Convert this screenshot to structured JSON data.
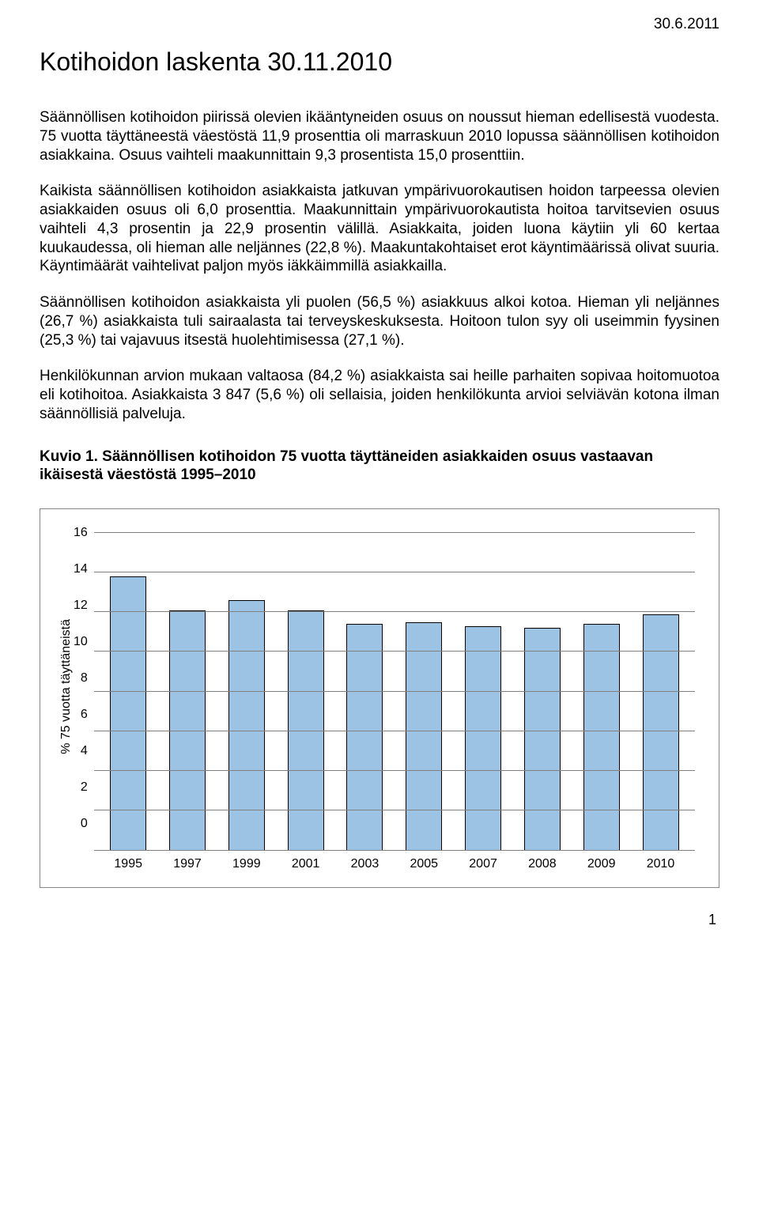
{
  "header": {
    "date": "30.6.2011",
    "title": "Kotihoidon laskenta 30.11.2010"
  },
  "paragraphs": {
    "p1": "Säännöllisen kotihoidon piirissä olevien ikääntyneiden osuus on noussut hieman edellisestä vuodesta. 75 vuotta täyttäneestä väestöstä 11,9 prosenttia oli marraskuun 2010 lopussa säännöllisen kotihoidon asiakkaina. Osuus vaihteli maakunnittain 9,3 prosentista 15,0 prosenttiin.",
    "p2": "Kaikista säännöllisen kotihoidon asiakkaista jatkuvan ympärivuorokautisen hoidon tarpeessa olevien asiakkaiden osuus oli 6,0 prosenttia. Maakunnittain ympärivuorokautista hoitoa tarvitsevien osuus vaihteli 4,3 prosentin ja 22,9 prosentin välillä. Asiakkaita, joiden luona käytiin yli 60 kertaa kuukaudessa, oli hieman alle neljännes (22,8 %). Maakuntakohtaiset erot käyntimäärissä olivat suuria. Käyntimäärät vaihtelivat paljon myös iäkkäimmillä asiakkailla.",
    "p3": "Säännöllisen kotihoidon asiakkaista yli puolen (56,5 %) asiakkuus alkoi kotoa. Hieman yli neljännes (26,7 %) asiakkaista tuli sairaalasta tai terveyskeskuksesta. Hoitoon tulon syy oli useimmin fyysinen (25,3 %) tai vajavuus itsestä huolehtimisessa (27,1 %).",
    "p4": "Henkilökunnan arvion mukaan valtaosa (84,2 %) asiakkaista sai heille parhaiten sopivaa hoitomuotoa eli kotihoitoa. Asiakkaista 3 847 (5,6 %) oli sellaisia, joiden henkilökunta arvioi selviävän kotona ilman säännöllisiä palveluja."
  },
  "chart": {
    "title": "Kuvio 1. Säännöllisen kotihoidon 75 vuotta täyttäneiden asiakkaiden osuus vastaavan ikäisestä väestöstä 1995–2010",
    "type": "bar",
    "y_label": "% 75 vuotta täyttäneistä",
    "y_ticks": [
      16,
      14,
      12,
      10,
      8,
      6,
      4,
      2,
      0
    ],
    "ylim_max": 16,
    "categories": [
      "1995",
      "1997",
      "1999",
      "2001",
      "2003",
      "2005",
      "2007",
      "2008",
      "2009",
      "2010"
    ],
    "values": [
      13.8,
      12.1,
      12.6,
      12.1,
      11.4,
      11.5,
      11.3,
      11.2,
      11.4,
      11.9
    ],
    "bar_color": "#9cc3e4",
    "bar_border": "#000000",
    "grid_color": "#808080",
    "background": "#ffffff",
    "label_fontsize": 16
  },
  "page_number": "1"
}
